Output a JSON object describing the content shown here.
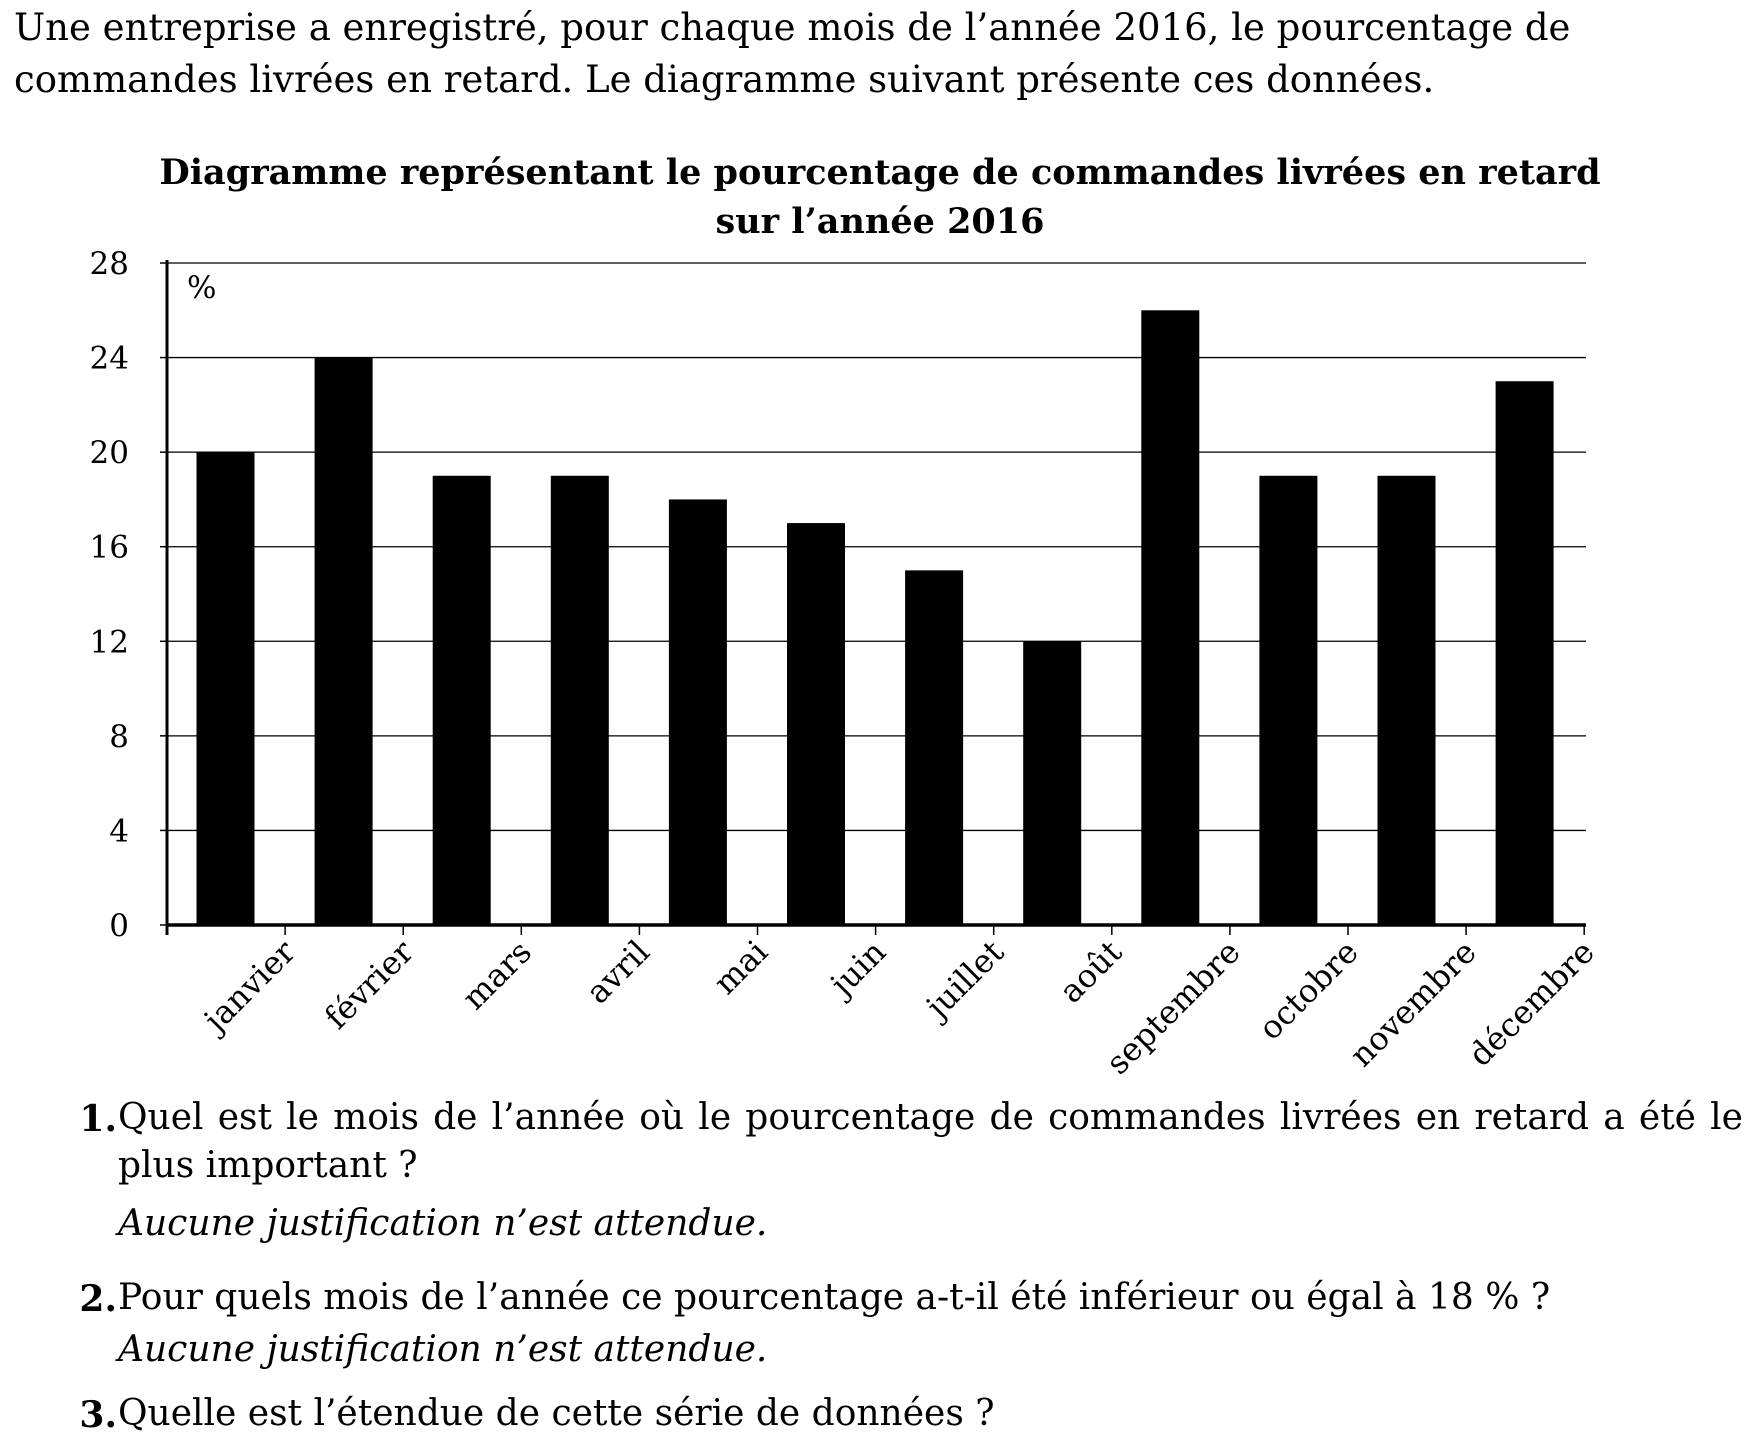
{
  "intro": "Une entreprise a enregistré, pour chaque mois de l’année 2016, le pourcentage de commandes livrées en retard. Le diagramme suivant présente ces données.",
  "chart_data": {
    "type": "bar",
    "title_line1": "Diagramme représentant le pourcentage de commandes livrées en retard",
    "title_line2": "sur l’année 2016",
    "ylabel": "%",
    "xlabel": "",
    "ylim": [
      0,
      28
    ],
    "yticks": [
      0,
      4,
      8,
      12,
      16,
      20,
      24,
      28
    ],
    "grid": true,
    "bar_color": "#000000",
    "categories": [
      "janvier",
      "février",
      "mars",
      "avril",
      "mai",
      "juin",
      "juillet",
      "août",
      "septembre",
      "octobre",
      "novembre",
      "décembre"
    ],
    "values": [
      20,
      24,
      19,
      19,
      18,
      17,
      15,
      12,
      26,
      19,
      19,
      23
    ]
  },
  "questions": [
    {
      "number": "1.",
      "text": "Quel est le mois de l’année où le pourcentage de commandes livrées en retard a été le plus important ?",
      "note": "Aucune justification n’est attendue."
    },
    {
      "number": "2.",
      "text": "Pour quels mois de l’année ce pourcentage a-t-il été inférieur ou égal à 18 % ?",
      "note": "Aucune justification n’est attendue."
    },
    {
      "number": "3.",
      "text": "Quelle est l’étendue de cette série de données ?",
      "note": ""
    }
  ]
}
